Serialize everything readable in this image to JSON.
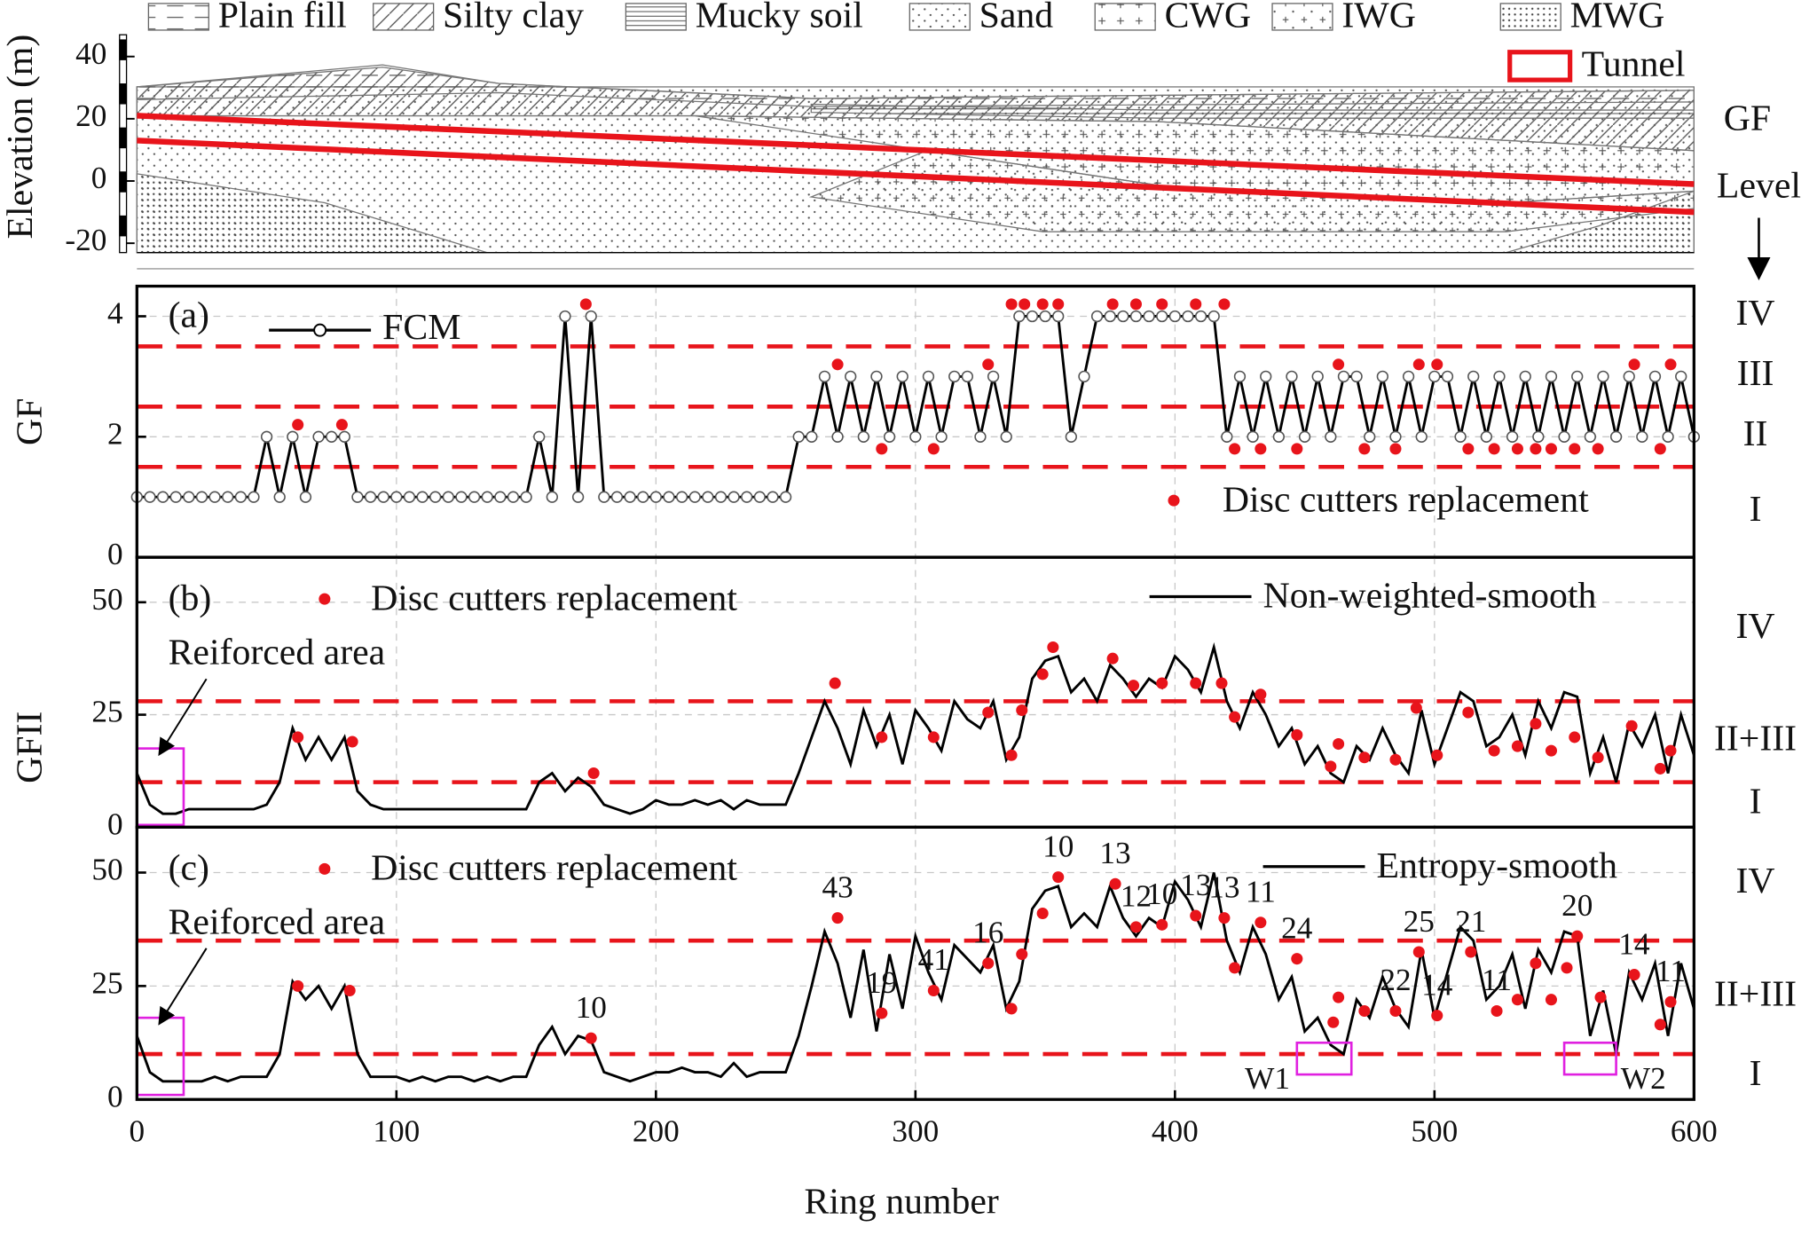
{
  "chart_data": [
    {
      "type": "profile",
      "ylabel": "Elevation (m)",
      "xlim": [
        0,
        600
      ],
      "ylim": [
        -23,
        47
      ],
      "yticks": [
        -20,
        0,
        20,
        40
      ],
      "strata": [
        "Plain fill",
        "Silty clay",
        "Mucky soil",
        "Sand",
        "CWG",
        "IWG",
        "MWG"
      ],
      "tunnel": {
        "name": "Tunnel",
        "color": "#e8141b",
        "x": [
          0,
          600
        ],
        "crown": [
          21,
          -1
        ],
        "invert": [
          13,
          -10
        ]
      },
      "level_title": [
        "GF",
        "Level"
      ]
    },
    {
      "type": "line",
      "label": "(a)",
      "ylabel": "GF",
      "xlim": [
        0,
        600
      ],
      "xticks": [
        0,
        100,
        200,
        300,
        400,
        500,
        600
      ],
      "ylim": [
        0,
        4.5
      ],
      "yticks": [
        0,
        2,
        4
      ],
      "grid": true,
      "x": [
        0,
        5,
        10,
        15,
        20,
        25,
        30,
        35,
        40,
        45,
        50,
        55,
        60,
        65,
        70,
        75,
        80,
        85,
        90,
        95,
        100,
        105,
        110,
        115,
        120,
        125,
        130,
        135,
        140,
        145,
        150,
        155,
        160,
        165,
        170,
        175,
        180,
        185,
        190,
        195,
        200,
        205,
        210,
        215,
        220,
        225,
        230,
        235,
        240,
        245,
        250,
        255,
        260,
        265,
        270,
        275,
        280,
        285,
        290,
        295,
        300,
        305,
        310,
        315,
        320,
        325,
        330,
        335,
        340,
        345,
        350,
        355,
        360,
        365,
        370,
        375,
        380,
        385,
        390,
        395,
        400,
        405,
        410,
        415,
        420,
        425,
        430,
        435,
        440,
        445,
        450,
        455,
        460,
        465,
        470,
        475,
        480,
        485,
        490,
        495,
        500,
        505,
        510,
        515,
        520,
        525,
        530,
        535,
        540,
        545,
        550,
        555,
        560,
        565,
        570,
        575,
        580,
        585,
        590,
        595,
        600
      ],
      "series": [
        {
          "name": "FCM",
          "color": "#000000",
          "values": [
            1,
            1,
            1,
            1,
            1,
            1,
            1,
            1,
            1,
            1,
            2,
            1,
            2,
            1,
            2,
            2,
            2,
            1,
            1,
            1,
            1,
            1,
            1,
            1,
            1,
            1,
            1,
            1,
            1,
            1,
            1,
            2,
            1,
            4,
            1,
            4,
            1,
            1,
            1,
            1,
            1,
            1,
            1,
            1,
            1,
            1,
            1,
            1,
            1,
            1,
            1,
            2,
            2,
            3,
            2,
            3,
            2,
            3,
            2,
            3,
            2,
            3,
            2,
            3,
            3,
            2,
            3,
            2,
            4,
            4,
            4,
            4,
            2,
            3,
            4,
            4,
            4,
            4,
            4,
            4,
            4,
            4,
            4,
            4,
            2,
            3,
            2,
            3,
            2,
            3,
            2,
            3,
            2,
            3,
            3,
            2,
            3,
            2,
            3,
            2,
            3,
            3,
            2,
            3,
            2,
            3,
            2,
            3,
            2,
            3,
            2,
            3,
            2,
            3,
            2,
            3,
            2,
            3,
            2,
            3,
            2
          ]
        }
      ],
      "replacements": {
        "name": "Disc cutters replacement",
        "color": "#e8141b",
        "x": [
          62,
          79,
          173,
          270,
          287,
          307,
          328,
          337,
          342,
          349,
          355,
          376,
          385,
          395,
          408,
          419,
          423,
          433,
          447,
          463,
          473,
          485,
          494,
          501,
          513,
          523,
          532,
          539,
          545,
          554,
          563,
          577,
          587,
          591
        ],
        "values": [
          2.2,
          2.2,
          4.2,
          3.2,
          1.8,
          1.8,
          3.2,
          4.2,
          4.2,
          4.2,
          4.2,
          4.2,
          4.2,
          4.2,
          4.2,
          4.2,
          1.8,
          1.8,
          1.8,
          3.2,
          1.8,
          1.8,
          3.2,
          3.2,
          1.8,
          1.8,
          1.8,
          1.8,
          1.8,
          1.8,
          1.8,
          3.2,
          1.8,
          3.2
        ]
      },
      "thresholds": [
        1.5,
        2.5,
        3.5
      ],
      "levels": [
        "I",
        "II",
        "III",
        "IV"
      ]
    },
    {
      "type": "line",
      "label": "(b)",
      "ylabel": "GFII",
      "xlim": [
        0,
        600
      ],
      "xticks": [
        0,
        100,
        200,
        300,
        400,
        500,
        600
      ],
      "ylim": [
        0,
        60
      ],
      "yticks": [
        0,
        25,
        50
      ],
      "grid": true,
      "x": [
        0,
        5,
        10,
        15,
        20,
        25,
        30,
        35,
        40,
        45,
        50,
        55,
        60,
        65,
        70,
        75,
        80,
        85,
        90,
        95,
        100,
        105,
        110,
        115,
        120,
        125,
        130,
        135,
        140,
        145,
        150,
        155,
        160,
        165,
        170,
        175,
        180,
        185,
        190,
        195,
        200,
        205,
        210,
        215,
        220,
        225,
        230,
        235,
        240,
        245,
        250,
        255,
        260,
        265,
        270,
        275,
        280,
        285,
        290,
        295,
        300,
        305,
        310,
        315,
        320,
        325,
        330,
        335,
        340,
        345,
        350,
        355,
        360,
        365,
        370,
        375,
        380,
        385,
        390,
        395,
        400,
        405,
        410,
        415,
        420,
        425,
        430,
        435,
        440,
        445,
        450,
        455,
        460,
        465,
        470,
        475,
        480,
        485,
        490,
        495,
        500,
        505,
        510,
        515,
        520,
        525,
        530,
        535,
        540,
        545,
        550,
        555,
        560,
        565,
        570,
        575,
        580,
        585,
        590,
        595,
        600
      ],
      "series": [
        {
          "name": "Non-weighted-smooth",
          "color": "#000000",
          "values": [
            12,
            5,
            3,
            3,
            4,
            4,
            4,
            4,
            4,
            4,
            5,
            10,
            22,
            15,
            20,
            15,
            20,
            8,
            5,
            4,
            4,
            4,
            4,
            4,
            4,
            4,
            4,
            4,
            4,
            4,
            4,
            10,
            12,
            8,
            11,
            9,
            5,
            4,
            3,
            4,
            6,
            5,
            5,
            6,
            5,
            6,
            4,
            6,
            5,
            5,
            5,
            12,
            20,
            28,
            22,
            14,
            26,
            18,
            25,
            14,
            26,
            22,
            17,
            28,
            24,
            22,
            28,
            15,
            20,
            33,
            37,
            38,
            30,
            33,
            28,
            36,
            33,
            29,
            33,
            31,
            38,
            35,
            30,
            40,
            28,
            22,
            30,
            25,
            18,
            22,
            14,
            18,
            12,
            10,
            18,
            15,
            22,
            16,
            12,
            26,
            14,
            22,
            30,
            28,
            18,
            20,
            25,
            16,
            28,
            22,
            30,
            29,
            12,
            20,
            10,
            23,
            18,
            25,
            12,
            25,
            16
          ]
        }
      ],
      "replacements": {
        "name": "Disc cutters replacement",
        "color": "#e8141b",
        "x": [
          62,
          83,
          176,
          269,
          287,
          307,
          328,
          337,
          341,
          349,
          353,
          376,
          384,
          395,
          408,
          418,
          423,
          433,
          447,
          460,
          463,
          473,
          485,
          493,
          501,
          513,
          523,
          532,
          539,
          545,
          554,
          563,
          576,
          587,
          591
        ],
        "values": [
          20,
          19,
          12,
          32,
          20,
          20,
          25.5,
          16,
          26,
          34,
          40,
          37.5,
          31.5,
          32,
          32,
          32,
          24.5,
          29.5,
          20.5,
          13.5,
          18.5,
          15.5,
          15,
          26.5,
          16,
          25.5,
          17,
          18,
          23,
          17,
          20,
          15.5,
          22.5,
          13,
          17
        ]
      },
      "thresholds": [
        10,
        28
      ],
      "levels": [
        "I",
        "II+III",
        "IV"
      ],
      "boxes": [
        {
          "label": "Reiforced area",
          "x": [
            0,
            18
          ],
          "y": [
            0.5,
            17.5
          ]
        }
      ]
    },
    {
      "type": "line",
      "label": "(c)",
      "xlabel": "Ring number",
      "xlim": [
        0,
        600
      ],
      "xticks": [
        0,
        100,
        200,
        300,
        400,
        500,
        600
      ],
      "ylim": [
        0,
        60
      ],
      "yticks": [
        0,
        25,
        50
      ],
      "grid": true,
      "x": [
        0,
        5,
        10,
        15,
        20,
        25,
        30,
        35,
        40,
        45,
        50,
        55,
        60,
        65,
        70,
        75,
        80,
        85,
        90,
        95,
        100,
        105,
        110,
        115,
        120,
        125,
        130,
        135,
        140,
        145,
        150,
        155,
        160,
        165,
        170,
        175,
        180,
        185,
        190,
        195,
        200,
        205,
        210,
        215,
        220,
        225,
        230,
        235,
        240,
        245,
        250,
        255,
        260,
        265,
        270,
        275,
        280,
        285,
        290,
        295,
        300,
        305,
        310,
        315,
        320,
        325,
        330,
        335,
        340,
        345,
        350,
        355,
        360,
        365,
        370,
        375,
        380,
        385,
        390,
        395,
        400,
        405,
        410,
        415,
        420,
        425,
        430,
        435,
        440,
        445,
        450,
        455,
        460,
        465,
        470,
        475,
        480,
        485,
        490,
        495,
        500,
        505,
        510,
        515,
        520,
        525,
        530,
        535,
        540,
        545,
        550,
        555,
        560,
        565,
        570,
        575,
        580,
        585,
        590,
        595,
        600
      ],
      "series": [
        {
          "name": "Entropy-smooth",
          "color": "#000000",
          "values": [
            14,
            6,
            4,
            4,
            4,
            4,
            5,
            4,
            5,
            5,
            5,
            10,
            26,
            22,
            25,
            20,
            25,
            10,
            5,
            5,
            5,
            4,
            5,
            4,
            5,
            5,
            4,
            5,
            4,
            5,
            5,
            12,
            16,
            10,
            14,
            13,
            6,
            5,
            4,
            5,
            6,
            6,
            7,
            6,
            6,
            5,
            8,
            5,
            6,
            6,
            6,
            14,
            25,
            37,
            30,
            18,
            33,
            15,
            32,
            20,
            36,
            28,
            22,
            34,
            31,
            28,
            34,
            20,
            26,
            42,
            46,
            47,
            38,
            41,
            38,
            47,
            40,
            36,
            40,
            38,
            48,
            44,
            38,
            50,
            35,
            28,
            38,
            32,
            22,
            27,
            15,
            18,
            12,
            10,
            22,
            18,
            27,
            20,
            16,
            33,
            18,
            28,
            38,
            35,
            22,
            25,
            32,
            20,
            33,
            28,
            37,
            36,
            14,
            24,
            10,
            28,
            22,
            30,
            14,
            30,
            20
          ]
        }
      ],
      "replacements": {
        "name": "Disc cutters replacement",
        "color": "#e8141b",
        "x": [
          62,
          82,
          175,
          270,
          287,
          307,
          328,
          337,
          341,
          349,
          355,
          377,
          385,
          395,
          408,
          419,
          423,
          433,
          447,
          461,
          463,
          473,
          485,
          494,
          501,
          514,
          524,
          532,
          539,
          545,
          551,
          555,
          564,
          577,
          587,
          591
        ],
        "values": [
          25,
          24,
          13.5,
          40,
          19,
          24,
          30,
          20,
          32,
          41,
          49,
          47.5,
          38,
          38.5,
          40.5,
          40,
          29,
          39,
          31,
          17,
          22.5,
          19.5,
          19.5,
          32.5,
          18.5,
          32.5,
          19.5,
          22,
          30,
          22,
          29,
          36,
          22.5,
          27.5,
          16.5,
          21.5
        ],
        "counts": [
          null,
          null,
          10,
          43,
          19,
          41,
          16,
          null,
          null,
          null,
          10,
          13,
          12,
          10,
          13,
          13,
          null,
          11,
          24,
          null,
          null,
          null,
          22,
          25,
          14,
          21,
          11,
          null,
          null,
          null,
          null,
          20,
          null,
          14,
          null,
          11
        ]
      },
      "thresholds": [
        10,
        35
      ],
      "levels": [
        "I",
        "II+III",
        "IV"
      ],
      "boxes": [
        {
          "label": "Reiforced area",
          "x": [
            0,
            18
          ],
          "y": [
            1,
            18
          ]
        },
        {
          "label": "W1",
          "x": [
            447,
            468
          ],
          "y": [
            5.5,
            12.5
          ]
        },
        {
          "label": "W2",
          "x": [
            550,
            570
          ],
          "y": [
            5.5,
            12.5
          ]
        }
      ]
    }
  ]
}
